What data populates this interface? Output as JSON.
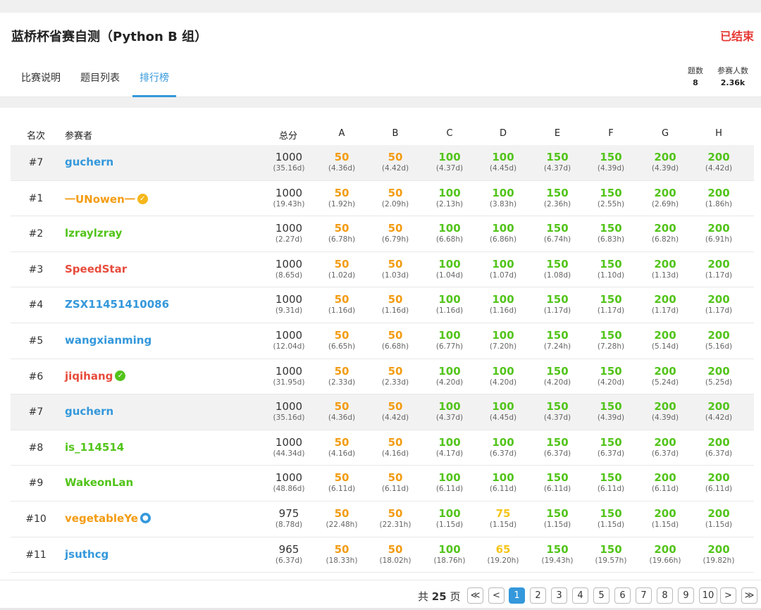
{
  "contest": {
    "title": "蓝桥杯省赛自测（Python B 组）",
    "status": "已结束"
  },
  "tabs": [
    {
      "label": "比赛说明",
      "active": false
    },
    {
      "label": "题目列表",
      "active": false
    },
    {
      "label": "排行榜",
      "active": true
    }
  ],
  "stats": {
    "problems_label": "题数",
    "problems_value": "8",
    "participants_label": "参赛人数",
    "participants_value": "2.36k"
  },
  "table": {
    "headers": {
      "rank": "名次",
      "user": "参赛者",
      "total": "总分",
      "problems": [
        "A",
        "B",
        "C",
        "D",
        "E",
        "F",
        "G",
        "H"
      ]
    },
    "rows": [
      {
        "rank": "#7",
        "user": "guchern",
        "user_color": "blue",
        "badge": null,
        "highlight": true,
        "total": "1000",
        "total_time": "(35.16d)",
        "cells": [
          [
            "50",
            "(4.36d)",
            "orange"
          ],
          [
            "50",
            "(4.42d)",
            "orange"
          ],
          [
            "100",
            "(4.37d)",
            "green"
          ],
          [
            "100",
            "(4.45d)",
            "green"
          ],
          [
            "150",
            "(4.37d)",
            "green"
          ],
          [
            "150",
            "(4.39d)",
            "green"
          ],
          [
            "200",
            "(4.39d)",
            "green"
          ],
          [
            "200",
            "(4.42d)",
            "green"
          ]
        ]
      },
      {
        "rank": "#1",
        "user": "一UNowen一",
        "user_color": "orange",
        "badge": "orange-check",
        "highlight": false,
        "total": "1000",
        "total_time": "(19.43h)",
        "cells": [
          [
            "50",
            "(1.92h)",
            "orange"
          ],
          [
            "50",
            "(2.09h)",
            "orange"
          ],
          [
            "100",
            "(2.13h)",
            "green"
          ],
          [
            "100",
            "(3.83h)",
            "green"
          ],
          [
            "150",
            "(2.36h)",
            "green"
          ],
          [
            "150",
            "(2.55h)",
            "green"
          ],
          [
            "200",
            "(2.69h)",
            "green"
          ],
          [
            "200",
            "(1.86h)",
            "green"
          ]
        ]
      },
      {
        "rank": "#2",
        "user": "lzraylzray",
        "user_color": "green",
        "badge": null,
        "highlight": false,
        "total": "1000",
        "total_time": "(2.27d)",
        "cells": [
          [
            "50",
            "(6.78h)",
            "orange"
          ],
          [
            "50",
            "(6.79h)",
            "orange"
          ],
          [
            "100",
            "(6.68h)",
            "green"
          ],
          [
            "100",
            "(6.86h)",
            "green"
          ],
          [
            "150",
            "(6.74h)",
            "green"
          ],
          [
            "150",
            "(6.83h)",
            "green"
          ],
          [
            "200",
            "(6.82h)",
            "green"
          ],
          [
            "200",
            "(6.91h)",
            "green"
          ]
        ]
      },
      {
        "rank": "#3",
        "user": "SpeedStar",
        "user_color": "red",
        "badge": null,
        "highlight": false,
        "total": "1000",
        "total_time": "(8.65d)",
        "cells": [
          [
            "50",
            "(1.02d)",
            "orange"
          ],
          [
            "50",
            "(1.03d)",
            "orange"
          ],
          [
            "100",
            "(1.04d)",
            "green"
          ],
          [
            "100",
            "(1.07d)",
            "green"
          ],
          [
            "150",
            "(1.08d)",
            "green"
          ],
          [
            "150",
            "(1.10d)",
            "green"
          ],
          [
            "200",
            "(1.13d)",
            "green"
          ],
          [
            "200",
            "(1.17d)",
            "green"
          ]
        ]
      },
      {
        "rank": "#4",
        "user": "ZSX11451410086",
        "user_color": "blue",
        "badge": null,
        "highlight": false,
        "total": "1000",
        "total_time": "(9.31d)",
        "cells": [
          [
            "50",
            "(1.16d)",
            "orange"
          ],
          [
            "50",
            "(1.16d)",
            "orange"
          ],
          [
            "100",
            "(1.16d)",
            "green"
          ],
          [
            "100",
            "(1.16d)",
            "green"
          ],
          [
            "150",
            "(1.17d)",
            "green"
          ],
          [
            "150",
            "(1.17d)",
            "green"
          ],
          [
            "200",
            "(1.17d)",
            "green"
          ],
          [
            "200",
            "(1.17d)",
            "green"
          ]
        ]
      },
      {
        "rank": "#5",
        "user": "wangxianming",
        "user_color": "blue",
        "badge": null,
        "highlight": false,
        "total": "1000",
        "total_time": "(12.04d)",
        "cells": [
          [
            "50",
            "(6.65h)",
            "orange"
          ],
          [
            "50",
            "(6.68h)",
            "orange"
          ],
          [
            "100",
            "(6.77h)",
            "green"
          ],
          [
            "100",
            "(7.20h)",
            "green"
          ],
          [
            "150",
            "(7.24h)",
            "green"
          ],
          [
            "150",
            "(7.28h)",
            "green"
          ],
          [
            "200",
            "(5.14d)",
            "green"
          ],
          [
            "200",
            "(5.16d)",
            "green"
          ]
        ]
      },
      {
        "rank": "#6",
        "user": "jiqihang",
        "user_color": "red",
        "badge": "green-check",
        "highlight": false,
        "total": "1000",
        "total_time": "(31.95d)",
        "cells": [
          [
            "50",
            "(2.33d)",
            "orange"
          ],
          [
            "50",
            "(2.33d)",
            "orange"
          ],
          [
            "100",
            "(4.20d)",
            "green"
          ],
          [
            "100",
            "(4.20d)",
            "green"
          ],
          [
            "150",
            "(4.20d)",
            "green"
          ],
          [
            "150",
            "(4.20d)",
            "green"
          ],
          [
            "200",
            "(5.24d)",
            "green"
          ],
          [
            "200",
            "(5.25d)",
            "green"
          ]
        ]
      },
      {
        "rank": "#7",
        "user": "guchern",
        "user_color": "blue",
        "badge": null,
        "highlight": true,
        "total": "1000",
        "total_time": "(35.16d)",
        "cells": [
          [
            "50",
            "(4.36d)",
            "orange"
          ],
          [
            "50",
            "(4.42d)",
            "orange"
          ],
          [
            "100",
            "(4.37d)",
            "green"
          ],
          [
            "100",
            "(4.45d)",
            "green"
          ],
          [
            "150",
            "(4.37d)",
            "green"
          ],
          [
            "150",
            "(4.39d)",
            "green"
          ],
          [
            "200",
            "(4.39d)",
            "green"
          ],
          [
            "200",
            "(4.42d)",
            "green"
          ]
        ]
      },
      {
        "rank": "#8",
        "user": "is_114514",
        "user_color": "green",
        "badge": null,
        "highlight": false,
        "total": "1000",
        "total_time": "(44.34d)",
        "cells": [
          [
            "50",
            "(4.16d)",
            "orange"
          ],
          [
            "50",
            "(4.16d)",
            "orange"
          ],
          [
            "100",
            "(4.17d)",
            "green"
          ],
          [
            "100",
            "(6.37d)",
            "green"
          ],
          [
            "150",
            "(6.37d)",
            "green"
          ],
          [
            "150",
            "(6.37d)",
            "green"
          ],
          [
            "200",
            "(6.37d)",
            "green"
          ],
          [
            "200",
            "(6.37d)",
            "green"
          ]
        ]
      },
      {
        "rank": "#9",
        "user": "WakeonLan",
        "user_color": "green",
        "badge": null,
        "highlight": false,
        "total": "1000",
        "total_time": "(48.86d)",
        "cells": [
          [
            "50",
            "(6.11d)",
            "orange"
          ],
          [
            "50",
            "(6.11d)",
            "orange"
          ],
          [
            "100",
            "(6.11d)",
            "green"
          ],
          [
            "100",
            "(6.11d)",
            "green"
          ],
          [
            "150",
            "(6.11d)",
            "green"
          ],
          [
            "150",
            "(6.11d)",
            "green"
          ],
          [
            "200",
            "(6.11d)",
            "green"
          ],
          [
            "200",
            "(6.11d)",
            "green"
          ]
        ]
      },
      {
        "rank": "#10",
        "user": "vegetableYe",
        "user_color": "orange",
        "badge": "blue-bulb",
        "highlight": false,
        "total": "975",
        "total_time": "(8.78d)",
        "cells": [
          [
            "50",
            "(22.48h)",
            "orange"
          ],
          [
            "50",
            "(22.31h)",
            "orange"
          ],
          [
            "100",
            "(1.15d)",
            "green"
          ],
          [
            "75",
            "(1.15d)",
            "yellow"
          ],
          [
            "150",
            "(1.15d)",
            "green"
          ],
          [
            "150",
            "(1.15d)",
            "green"
          ],
          [
            "200",
            "(1.15d)",
            "green"
          ],
          [
            "200",
            "(1.15d)",
            "green"
          ]
        ]
      },
      {
        "rank": "#11",
        "user": "jsuthcg",
        "user_color": "blue",
        "badge": null,
        "highlight": false,
        "total": "965",
        "total_time": "(6.37d)",
        "cells": [
          [
            "50",
            "(18.33h)",
            "orange"
          ],
          [
            "50",
            "(18.02h)",
            "orange"
          ],
          [
            "100",
            "(18.76h)",
            "green"
          ],
          [
            "65",
            "(19.20h)",
            "yellow"
          ],
          [
            "150",
            "(19.43h)",
            "green"
          ],
          [
            "150",
            "(19.57h)",
            "green"
          ],
          [
            "200",
            "(19.66h)",
            "green"
          ],
          [
            "200",
            "(19.82h)",
            "green"
          ]
        ]
      }
    ]
  },
  "pager": {
    "total_prefix": "共",
    "total_pages": "25",
    "total_suffix": "页",
    "first_icon": "double-chevron-left-icon",
    "prev_icon": "chevron-left-icon",
    "next_icon": "chevron-right-icon",
    "last_icon": "double-chevron-right-icon",
    "first_glyph": "≪",
    "prev_glyph": "<",
    "next_glyph": ">",
    "last_glyph": "≫",
    "pages": [
      "1",
      "2",
      "3",
      "4",
      "5",
      "6",
      "7",
      "8",
      "9",
      "10"
    ],
    "current": "1"
  },
  "colors": {
    "accent": "#3498db",
    "status_red": "#e53935",
    "score_orange": "#f39c12",
    "score_green": "#52c41a",
    "score_yellow": "#f5c518"
  }
}
